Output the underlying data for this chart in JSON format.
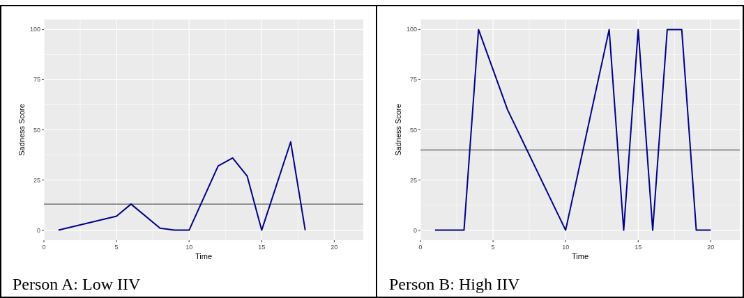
{
  "chart_data": [
    {
      "type": "line",
      "title": "Person A: Low IIV",
      "xlabel": "Time",
      "ylabel": "Sadness Score",
      "x": [
        1,
        5,
        6,
        8,
        9,
        10,
        12,
        13,
        14,
        15,
        17,
        18
      ],
      "series": [
        {
          "color": "#00008b",
          "values": [
            0,
            7,
            13,
            1,
            0,
            0,
            32,
            36,
            27,
            0,
            44,
            0
          ]
        }
      ],
      "xlim": [
        0,
        22
      ],
      "xticks": [
        0,
        5,
        10,
        15,
        20
      ],
      "ylim": [
        -5,
        105
      ],
      "yticks": [
        0,
        25,
        50,
        75,
        100
      ],
      "grid": true,
      "ref_lines": [
        {
          "axis": "y",
          "value": 13,
          "color": "#333333"
        }
      ]
    },
    {
      "type": "line",
      "title": "Person B: High IIV",
      "xlabel": "Time",
      "ylabel": "Sadness Score",
      "x": [
        1,
        3,
        4,
        6,
        10,
        13,
        14,
        15,
        16,
        17,
        18,
        19,
        20
      ],
      "series": [
        {
          "color": "#00008b",
          "values": [
            0,
            0,
            100,
            60,
            0,
            100,
            0,
            100,
            0,
            100,
            100,
            0,
            0
          ]
        }
      ],
      "xlim": [
        0,
        22
      ],
      "xticks": [
        0,
        5,
        10,
        15,
        20
      ],
      "ylim": [
        -5,
        105
      ],
      "yticks": [
        0,
        25,
        50,
        75,
        100
      ],
      "grid": true,
      "ref_lines": [
        {
          "axis": "y",
          "value": 40,
          "color": "#333333"
        }
      ]
    }
  ]
}
